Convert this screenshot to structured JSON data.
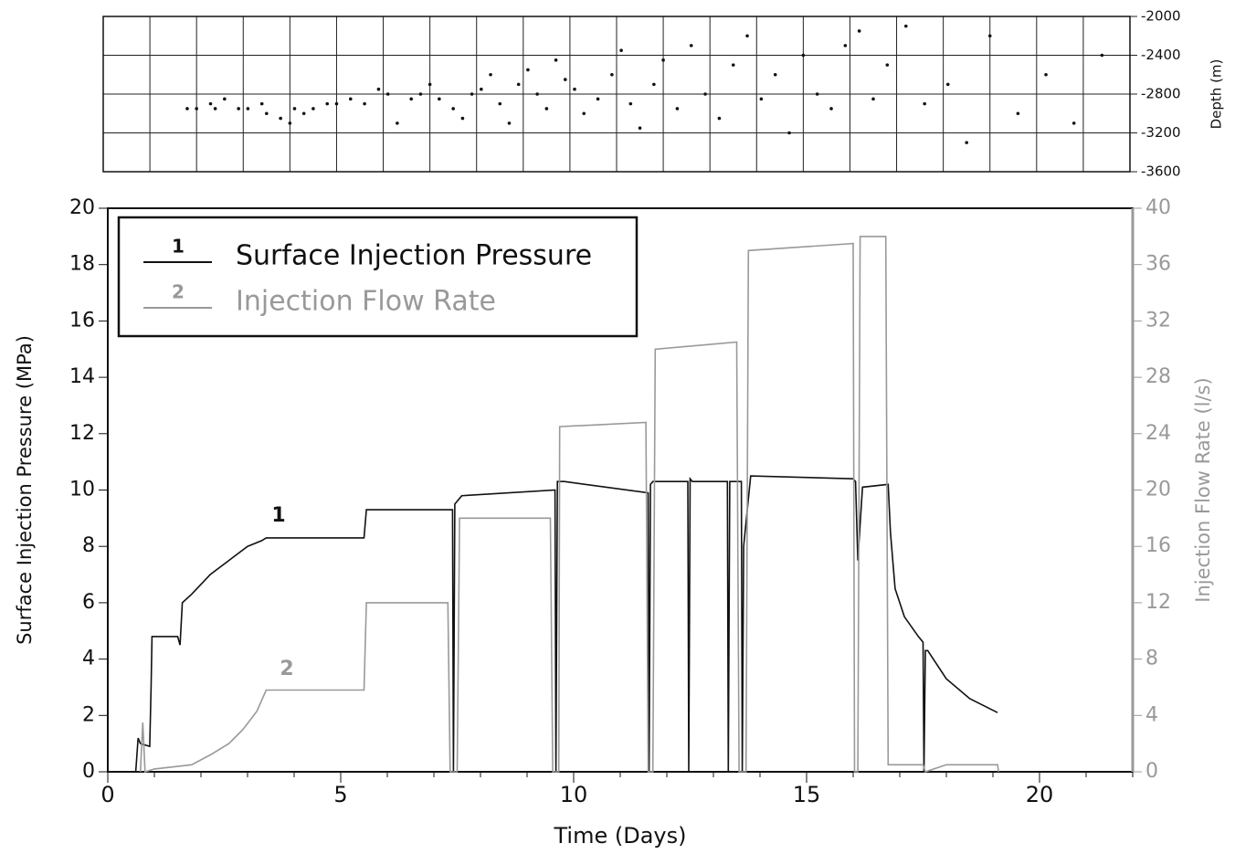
{
  "chart_data": [
    {
      "type": "scatter",
      "ylabel": "Depth (m)",
      "xlim": [
        0,
        22
      ],
      "xgrid": [
        0,
        1,
        2,
        3,
        4,
        5,
        6,
        7,
        8,
        9,
        10,
        11,
        12,
        13,
        14,
        15,
        16,
        17,
        18,
        19,
        20,
        21,
        22
      ],
      "ylim": [
        -3600,
        -2000
      ],
      "yticks": [
        -2000,
        -2400,
        -2800,
        -3200,
        -3600
      ],
      "color": "#111111",
      "x": [
        1.8,
        2.0,
        2.3,
        2.4,
        2.6,
        2.9,
        3.1,
        3.4,
        3.5,
        3.8,
        4.0,
        4.1,
        4.3,
        4.5,
        4.8,
        5.0,
        5.3,
        5.6,
        5.9,
        6.1,
        6.3,
        6.6,
        6.8,
        7.0,
        7.2,
        7.5,
        7.7,
        7.9,
        8.1,
        8.3,
        8.5,
        8.7,
        8.9,
        9.1,
        9.3,
        9.5,
        9.7,
        9.9,
        10.1,
        10.3,
        10.6,
        10.9,
        11.1,
        11.3,
        11.5,
        11.8,
        12.0,
        12.3,
        12.6,
        12.9,
        13.2,
        13.5,
        13.8,
        14.1,
        14.4,
        14.7,
        15.0,
        15.3,
        15.6,
        15.9,
        16.2,
        16.5,
        16.8,
        17.2,
        17.6,
        18.1,
        18.5,
        19.0,
        19.6,
        20.2,
        20.8,
        21.4
      ],
      "values": [
        -2950,
        -2950,
        -2900,
        -2950,
        -2850,
        -2950,
        -2950,
        -2900,
        -3000,
        -3050,
        -3100,
        -2950,
        -3000,
        -2950,
        -2900,
        -2900,
        -2850,
        -2900,
        -2750,
        -2800,
        -3100,
        -2850,
        -2800,
        -2700,
        -2850,
        -2950,
        -3050,
        -2800,
        -2750,
        -2600,
        -2900,
        -3100,
        -2700,
        -2550,
        -2800,
        -2950,
        -2450,
        -2650,
        -2750,
        -3000,
        -2850,
        -2600,
        -2350,
        -2900,
        -3150,
        -2700,
        -2450,
        -2950,
        -2300,
        -2800,
        -3050,
        -2500,
        -2200,
        -2850,
        -2600,
        -3200,
        -2400,
        -2800,
        -2950,
        -2300,
        -2150,
        -2850,
        -2500,
        -2100,
        -2900,
        -2700,
        -3300,
        -2200,
        -3000,
        -2600,
        -3100,
        -2400
      ]
    },
    {
      "type": "line",
      "xlabel": "Time (Days)",
      "ylabel": "Surface Injection Pressure (MPa)",
      "y2label": "Injection Flow Rate (l/s)",
      "xlim": [
        0,
        22
      ],
      "xticks": [
        0,
        5,
        10,
        15,
        20
      ],
      "ylim": [
        0,
        20
      ],
      "yticks": [
        0,
        2,
        4,
        6,
        8,
        10,
        12,
        14,
        16,
        18,
        20
      ],
      "y2lim": [
        0,
        40
      ],
      "y2ticks": [
        0,
        4,
        8,
        12,
        16,
        20,
        24,
        28,
        32,
        36,
        40
      ],
      "legend": "upper left",
      "series": [
        {
          "name": "Surface Injection Pressure",
          "marker_label": "1",
          "color": "#111111",
          "x": [
            0.6,
            0.65,
            0.7,
            0.9,
            0.93,
            0.95,
            1.5,
            1.55,
            1.6,
            1.8,
            2.2,
            2.6,
            3.0,
            3.3,
            3.4,
            5.5,
            5.55,
            7.4,
            7.42,
            7.45,
            7.6,
            9.6,
            9.62,
            9.65,
            9.8,
            11.6,
            11.62,
            11.65,
            11.7,
            12.45,
            12.47,
            12.5,
            12.55,
            13.3,
            13.32,
            13.35,
            13.4,
            13.6,
            13.62,
            13.65,
            13.8,
            16.0,
            16.05,
            16.1,
            16.2,
            16.75,
            16.8,
            16.9,
            17.1,
            17.4,
            17.5,
            17.52,
            17.55,
            17.6,
            18.0,
            18.5,
            19.1
          ],
          "values": [
            0,
            1.2,
            1.0,
            0.9,
            3,
            4.8,
            4.8,
            4.5,
            6,
            6.3,
            7,
            7.5,
            8,
            8.2,
            8.3,
            8.3,
            9.3,
            9.3,
            0,
            9.5,
            9.8,
            10,
            0,
            10.3,
            10.3,
            9.9,
            0,
            10.2,
            10.3,
            10.3,
            0,
            10.4,
            10.3,
            10.3,
            0,
            10.3,
            10.3,
            10.3,
            0,
            8,
            10.5,
            10.4,
            10.3,
            7.5,
            10.1,
            10.2,
            8.5,
            6.5,
            5.5,
            4.8,
            4.6,
            0,
            4.3,
            4.3,
            3.3,
            2.6,
            2.1
          ]
        },
        {
          "name": "Injection Flow Rate",
          "marker_label": "2",
          "color": "#999999",
          "axis": "y2",
          "x": [
            0.7,
            0.75,
            0.8,
            1.0,
            1.8,
            2.2,
            2.6,
            2.9,
            3.2,
            3.4,
            5.5,
            5.55,
            7.3,
            7.35,
            7.5,
            7.55,
            9.5,
            9.55,
            9.68,
            9.7,
            11.55,
            11.6,
            11.7,
            11.75,
            13.5,
            13.55,
            13.7,
            13.75,
            16.0,
            16.03,
            16.1,
            16.15,
            16.7,
            16.75,
            17.5,
            17.55,
            18.0,
            19.1,
            19.12
          ],
          "values": [
            0,
            3.5,
            0,
            0.2,
            0.5,
            1.2,
            2,
            3,
            4.3,
            5.8,
            5.8,
            12,
            12,
            0,
            0,
            18,
            18,
            0,
            0,
            24.5,
            24.8,
            0,
            0,
            30,
            30.5,
            0,
            0,
            37,
            37.5,
            0,
            0,
            38,
            38,
            0.5,
            0.5,
            0,
            0.5,
            0.5,
            0
          ]
        }
      ],
      "annotations": [
        {
          "text": "1"
        },
        {
          "text": "2"
        }
      ]
    }
  ]
}
